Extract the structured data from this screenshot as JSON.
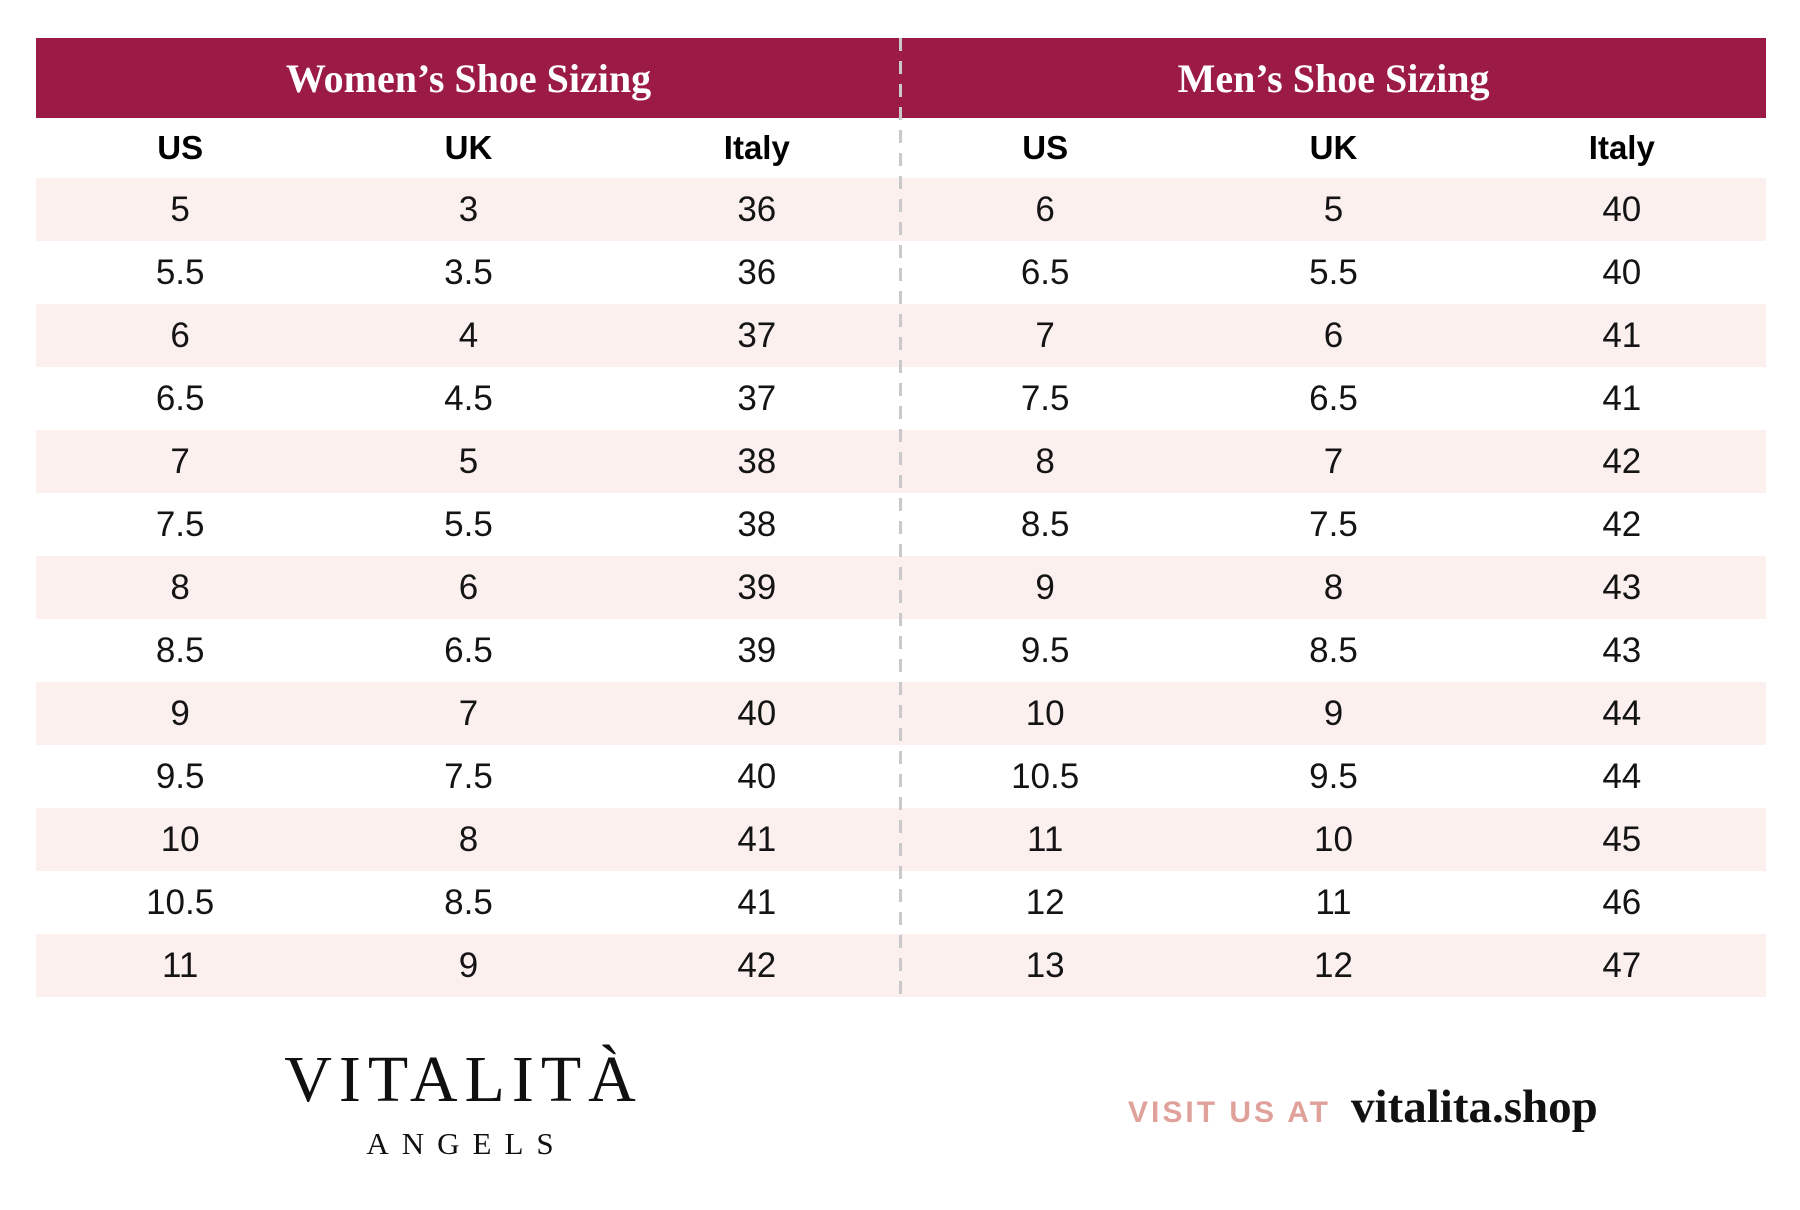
{
  "chart_data": [
    {
      "type": "table",
      "title": "Women’s Shoe Sizing",
      "columns": [
        "US",
        "UK",
        "Italy"
      ],
      "rows": [
        [
          "5",
          "3",
          "36"
        ],
        [
          "5.5",
          "3.5",
          "36"
        ],
        [
          "6",
          "4",
          "37"
        ],
        [
          "6.5",
          "4.5",
          "37"
        ],
        [
          "7",
          "5",
          "38"
        ],
        [
          "7.5",
          "5.5",
          "38"
        ],
        [
          "8",
          "6",
          "39"
        ],
        [
          "8.5",
          "6.5",
          "39"
        ],
        [
          "9",
          "7",
          "40"
        ],
        [
          "9.5",
          "7.5",
          "40"
        ],
        [
          "10",
          "8",
          "41"
        ],
        [
          "10.5",
          "8.5",
          "41"
        ],
        [
          "11",
          "9",
          "42"
        ]
      ]
    },
    {
      "type": "table",
      "title": "Men’s Shoe Sizing",
      "columns": [
        "US",
        "UK",
        "Italy"
      ],
      "rows": [
        [
          "6",
          "5",
          "40"
        ],
        [
          "6.5",
          "5.5",
          "40"
        ],
        [
          "7",
          "6",
          "41"
        ],
        [
          "7.5",
          "6.5",
          "41"
        ],
        [
          "8",
          "7",
          "42"
        ],
        [
          "8.5",
          "7.5",
          "42"
        ],
        [
          "9",
          "8",
          "43"
        ],
        [
          "9.5",
          "8.5",
          "43"
        ],
        [
          "10",
          "9",
          "44"
        ],
        [
          "10.5",
          "9.5",
          "44"
        ],
        [
          "11",
          "10",
          "45"
        ],
        [
          "12",
          "11",
          "46"
        ],
        [
          "13",
          "12",
          "47"
        ]
      ]
    }
  ],
  "footer": {
    "brand": "VITALITÀ",
    "brand_sub": "ANGELS",
    "visit_label": "VISIT US AT",
    "website": "vitalita.shop"
  },
  "colors": {
    "header_bg": "#9C1B46",
    "header_text": "#ffffff",
    "row_alt_bg": "#FCF0EE",
    "divider": "#C9C9C9",
    "cell_text": "#141414",
    "accent_pink": "#DFA19A",
    "brand_text": "#101010"
  }
}
